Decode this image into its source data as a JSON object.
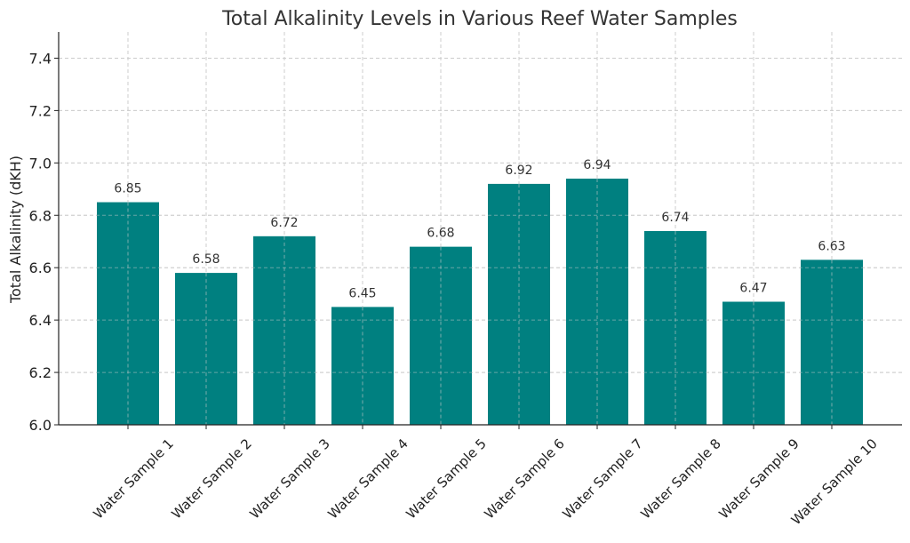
{
  "chart_data": {
    "type": "bar",
    "title": "Total Alkalinity Levels in Various Reef Water Samples",
    "xlabel": "",
    "ylabel": "Total Alkalinity (dKH)",
    "categories": [
      "Water Sample 1",
      "Water Sample 2",
      "Water Sample 3",
      "Water Sample 4",
      "Water Sample 5",
      "Water Sample 6",
      "Water Sample 7",
      "Water Sample 8",
      "Water Sample 9",
      "Water Sample 10"
    ],
    "values": [
      6.85,
      6.58,
      6.72,
      6.45,
      6.68,
      6.92,
      6.94,
      6.74,
      6.47,
      6.63
    ],
    "value_labels": [
      "6.85",
      "6.58",
      "6.72",
      "6.45",
      "6.68",
      "6.92",
      "6.94",
      "6.74",
      "6.47",
      "6.63"
    ],
    "ylim": [
      6.0,
      7.5
    ],
    "yticks": [
      "6.0",
      "6.2",
      "6.4",
      "6.6",
      "6.8",
      "7.0",
      "7.2",
      "7.4"
    ],
    "grid": true,
    "bar_color": "#008080"
  }
}
